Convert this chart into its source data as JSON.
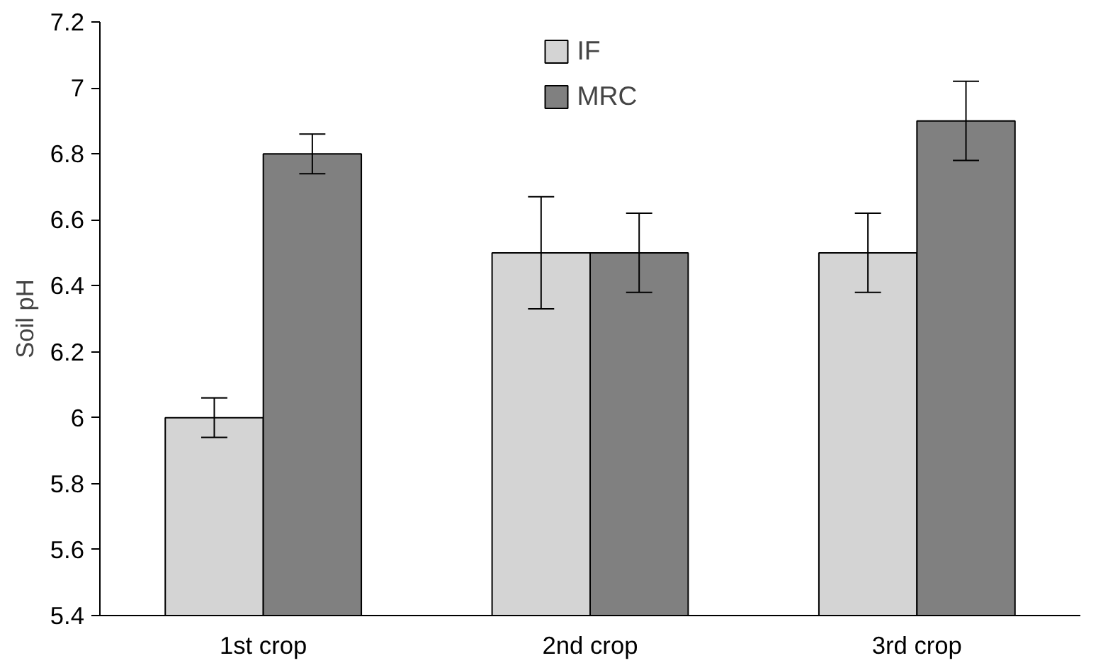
{
  "chart_data": {
    "type": "bar",
    "ylabel": "Soil pH",
    "categories": [
      "1st crop",
      "2nd crop",
      "3rd crop"
    ],
    "series": [
      {
        "name": "IF",
        "color": "#d4d4d4",
        "values": [
          6.0,
          6.5,
          6.5
        ],
        "errors": [
          0.06,
          0.17,
          0.12
        ]
      },
      {
        "name": "MRC",
        "color": "#808080",
        "values": [
          6.8,
          6.5,
          6.9
        ],
        "errors": [
          0.06,
          0.12,
          0.12
        ]
      }
    ],
    "ylim": [
      5.4,
      7.2
    ],
    "yticks": [
      5.4,
      5.6,
      5.8,
      6,
      6.2,
      6.4,
      6.6,
      6.8,
      7,
      7.2
    ],
    "grid": false,
    "legend": "top"
  }
}
